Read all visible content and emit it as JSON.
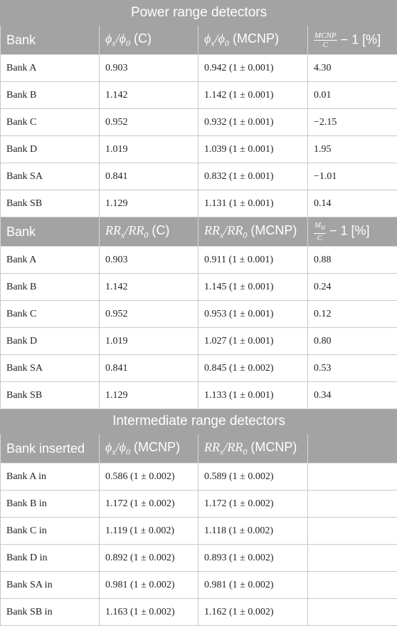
{
  "power": {
    "title": "Power range detectors",
    "header1": {
      "bank": "Bank",
      "col2_unit": "(C)",
      "col3_unit": "(MCNP)",
      "col4_num": "MCNP",
      "col4_den": "C",
      "col4_suffix": "− 1 [%]"
    },
    "rows1": [
      {
        "bank": "Bank A",
        "c": "0.903",
        "mcnp": "0.942 (1 ± 0.001)",
        "diff": "4.30"
      },
      {
        "bank": "Bank B",
        "c": "1.142",
        "mcnp": "1.142 (1 ± 0.001)",
        "diff": "0.01"
      },
      {
        "bank": "Bank C",
        "c": "0.952",
        "mcnp": "0.932 (1 ± 0.001)",
        "diff": "−2.15"
      },
      {
        "bank": "Bank D",
        "c": "1.019",
        "mcnp": "1.039 (1 ± 0.001)",
        "diff": "1.95"
      },
      {
        "bank": "Bank SA",
        "c": "0.841",
        "mcnp": "0.832 (1 ± 0.001)",
        "diff": "−1.01"
      },
      {
        "bank": "Bank SB",
        "c": "1.129",
        "mcnp": "1.131 (1 ± 0.001)",
        "diff": "0.14"
      }
    ],
    "header2": {
      "bank": "Bank",
      "col2_unit": "(C)",
      "col3_unit": "(MCNP)",
      "col4_num_main": "M",
      "col4_num_sub": "H",
      "col4_den": "C",
      "col4_suffix": "− 1 [%]"
    },
    "rows2": [
      {
        "bank": "Bank A",
        "c": "0.903",
        "mcnp": "0.911 (1 ± 0.001)",
        "diff": "0.88"
      },
      {
        "bank": "Bank B",
        "c": "1.142",
        "mcnp": "1.145 (1 ± 0.001)",
        "diff": "0.24"
      },
      {
        "bank": "Bank C",
        "c": "0.952",
        "mcnp": "0.953 (1 ± 0.001)",
        "diff": "0.12"
      },
      {
        "bank": "Bank D",
        "c": "1.019",
        "mcnp": "1.027 (1 ± 0.001)",
        "diff": "0.80"
      },
      {
        "bank": "Bank SA",
        "c": "0.841",
        "mcnp": "0.845 (1 ± 0.002)",
        "diff": "0.53"
      },
      {
        "bank": "Bank SB",
        "c": "1.129",
        "mcnp": "1.133 (1 ± 0.001)",
        "diff": "0.34"
      }
    ]
  },
  "intermediate": {
    "title": "Intermediate range detectors",
    "header": {
      "bank": "Bank inserted",
      "col2_unit": "(MCNP)",
      "col3_unit": "(MCNP)"
    },
    "rows": [
      {
        "bank": "Bank A in",
        "phi": "0.586 (1 ± 0.002)",
        "rr": "0.589 (1 ± 0.002)"
      },
      {
        "bank": "Bank B in",
        "phi": "1.172 (1 ± 0.002)",
        "rr": "1.172 (1 ± 0.002)"
      },
      {
        "bank": "Bank C in",
        "phi": "1.119 (1 ± 0.002)",
        "rr": "1.118 (1 ± 0.002)"
      },
      {
        "bank": "Bank D in",
        "phi": "0.892 (1 ± 0.002)",
        "rr": "0.893 (1 ± 0.002)"
      },
      {
        "bank": "Bank SA in",
        "phi": "0.981 (1 ± 0.002)",
        "rr": "0.981 (1 ± 0.002)"
      },
      {
        "bank": "Bank SB in",
        "phi": "1.163 (1 ± 0.002)",
        "rr": "1.162 (1 ± 0.002)"
      }
    ]
  }
}
